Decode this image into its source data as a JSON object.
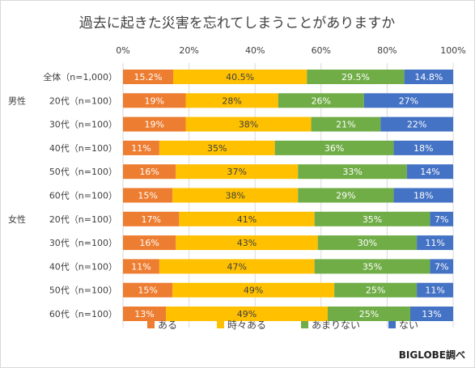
{
  "chart_data": {
    "type": "bar",
    "orientation": "horizontal",
    "stacked": true,
    "percent": true,
    "title": "過去に起きた災害を忘れてしまうことがありますか",
    "xlim": [
      0,
      100
    ],
    "x_ticks": [
      "0%",
      "20%",
      "40%",
      "60%",
      "80%",
      "100%"
    ],
    "grid": true,
    "legend_position": "bottom",
    "credit": "BIGLOBE調べ",
    "groups": [
      "男性",
      "女性"
    ],
    "categories": [
      {
        "group": "",
        "label": "全体（n=1,000）"
      },
      {
        "group": "男性",
        "label": "20代（n=100）"
      },
      {
        "group": "",
        "label": "30代（n=100）"
      },
      {
        "group": "",
        "label": "40代（n=100）"
      },
      {
        "group": "",
        "label": "50代（n=100）"
      },
      {
        "group": "",
        "label": "60代（n=100）"
      },
      {
        "group": "女性",
        "label": "20代（n=100）"
      },
      {
        "group": "",
        "label": "30代（n=100）"
      },
      {
        "group": "",
        "label": "40代（n=100）"
      },
      {
        "group": "",
        "label": "50代（n=100）"
      },
      {
        "group": "",
        "label": "60代（n=100）"
      }
    ],
    "series": [
      {
        "name": "ある",
        "color": "#ed7d31",
        "values": [
          15.2,
          19,
          19,
          11,
          16,
          15,
          17,
          16,
          11,
          15,
          13
        ],
        "labels": [
          "15.2%",
          "19%",
          "19%",
          "11%",
          "16%",
          "15%",
          "17%",
          "16%",
          "11%",
          "15%",
          "13%"
        ]
      },
      {
        "name": "時々ある",
        "color": "#ffc000",
        "values": [
          40.5,
          28,
          38,
          35,
          37,
          38,
          41,
          43,
          47,
          49,
          49
        ],
        "labels": [
          "40.5%",
          "28%",
          "38%",
          "35%",
          "37%",
          "38%",
          "41%",
          "43%",
          "47%",
          "49%",
          "49%"
        ]
      },
      {
        "name": "あまりない",
        "color": "#70ad47",
        "values": [
          29.5,
          26,
          21,
          36,
          33,
          29,
          35,
          30,
          35,
          25,
          25
        ],
        "labels": [
          "29.5%",
          "26%",
          "21%",
          "36%",
          "33%",
          "29%",
          "35%",
          "30%",
          "35%",
          "25%",
          "25%"
        ]
      },
      {
        "name": "ない",
        "color": "#4472c4",
        "values": [
          14.8,
          27,
          22,
          18,
          14,
          18,
          7,
          11,
          7,
          11,
          13
        ],
        "labels": [
          "14.8%",
          "27%",
          "22%",
          "18%",
          "14%",
          "18%",
          "7%",
          "11%",
          "7%",
          "11%",
          "13%"
        ]
      }
    ]
  }
}
